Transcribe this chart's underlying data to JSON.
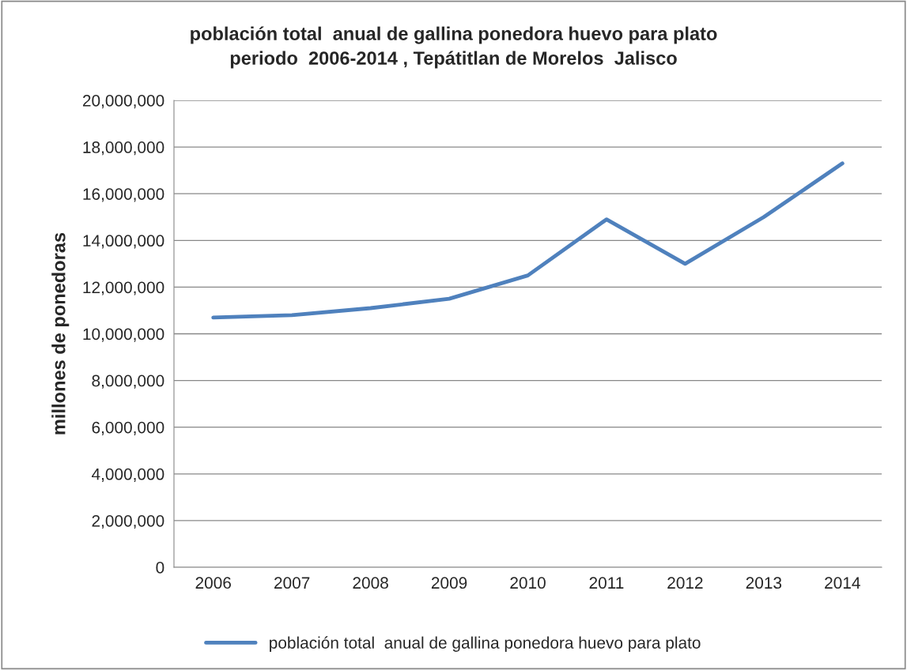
{
  "chart_data": {
    "type": "line",
    "title": "población total  anual de gallina ponedora huevo para plato\nperiodo  2006-2014 , Tepátitlan de Morelos  Jalisco",
    "ylabel": "millones de ponedoras",
    "categories": [
      "2006",
      "2007",
      "2008",
      "2009",
      "2010",
      "2011",
      "2012",
      "2013",
      "2014"
    ],
    "series": [
      {
        "name": "población total  anual de gallina ponedora huevo para plato",
        "color": "#4f81bd",
        "values": [
          10700000,
          10800000,
          11100000,
          11500000,
          12500000,
          14900000,
          13000000,
          15000000,
          17300000
        ]
      }
    ],
    "ylim": [
      0,
      20000000
    ],
    "yticks": [
      {
        "value": 0,
        "label": "0"
      },
      {
        "value": 2000000,
        "label": "2,000,000"
      },
      {
        "value": 4000000,
        "label": "4,000,000"
      },
      {
        "value": 6000000,
        "label": "6,000,000"
      },
      {
        "value": 8000000,
        "label": "8,000,000"
      },
      {
        "value": 10000000,
        "label": "10,000,000"
      },
      {
        "value": 12000000,
        "label": "12,000,000"
      },
      {
        "value": 14000000,
        "label": "14,000,000"
      },
      {
        "value": 16000000,
        "label": "16,000,000"
      },
      {
        "value": 18000000,
        "label": "18,000,000"
      },
      {
        "value": 20000000,
        "label": "20,000,000"
      }
    ],
    "grid": "y",
    "legend": "bottom",
    "marker": "none",
    "line_style": "solid"
  }
}
